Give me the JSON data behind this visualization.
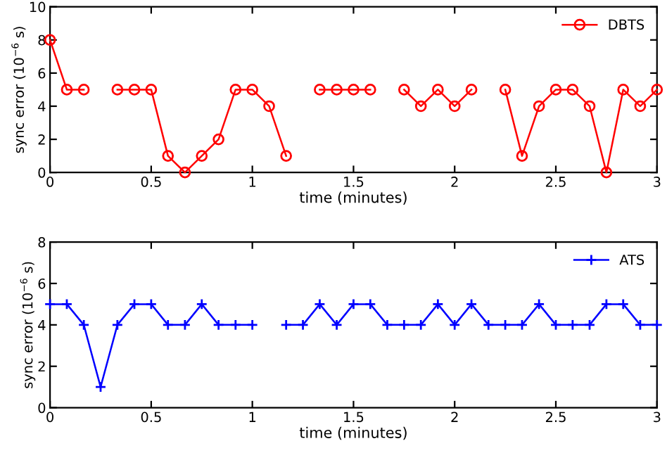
{
  "chart_data": [
    {
      "type": "line",
      "xlabel": "time (minutes)",
      "ylabel": "sync error (10$^{−6}$ s)",
      "xlim": [
        0,
        3
      ],
      "ylim": [
        0,
        10
      ],
      "xticks": [
        0,
        0.5,
        1,
        1.5,
        2,
        2.5,
        3
      ],
      "yticks": [
        0,
        2,
        4,
        6,
        8,
        10
      ],
      "legend": "top right",
      "marker": "circle",
      "line_style": "solid",
      "grid": false,
      "x": [
        0,
        0.083,
        0.167,
        0.25,
        0.333,
        0.417,
        0.5,
        0.583,
        0.667,
        0.75,
        0.833,
        0.917,
        1,
        1.083,
        1.167,
        1.25,
        1.333,
        1.417,
        1.5,
        1.583,
        1.667,
        1.75,
        1.833,
        1.917,
        2,
        2.083,
        2.167,
        2.25,
        2.333,
        2.417,
        2.5,
        2.583,
        2.667,
        2.75,
        2.833,
        2.917,
        3
      ],
      "series": [
        {
          "name": "DBTS",
          "color": "#ff0000",
          "values": [
            8,
            5,
            5,
            null,
            5,
            5,
            5,
            1,
            0,
            1,
            2,
            5,
            5,
            4,
            1,
            null,
            5,
            5,
            5,
            5,
            null,
            5,
            4,
            5,
            4,
            5,
            null,
            5,
            1,
            4,
            5,
            5,
            4,
            0,
            5,
            4,
            5
          ]
        }
      ]
    },
    {
      "type": "line",
      "xlabel": "time (minutes)",
      "ylabel": "sync error (10$^{−6}$ s)",
      "xlim": [
        0,
        3
      ],
      "ylim": [
        0,
        8
      ],
      "xticks": [
        0,
        0.5,
        1,
        1.5,
        2,
        2.5,
        3
      ],
      "yticks": [
        0,
        2,
        4,
        6,
        8
      ],
      "legend": "top right",
      "marker": "cross",
      "line_style": "solid",
      "grid": false,
      "x": [
        0,
        0.083,
        0.167,
        0.25,
        0.333,
        0.417,
        0.5,
        0.583,
        0.667,
        0.75,
        0.833,
        0.917,
        1,
        1.083,
        1.167,
        1.25,
        1.333,
        1.417,
        1.5,
        1.583,
        1.667,
        1.75,
        1.833,
        1.917,
        2,
        2.083,
        2.167,
        2.25,
        2.333,
        2.417,
        2.5,
        2.583,
        2.667,
        2.75,
        2.833,
        2.917,
        3
      ],
      "series": [
        {
          "name": "ATS",
          "color": "#0000ff",
          "values": [
            5,
            5,
            4,
            1,
            4,
            5,
            5,
            4,
            4,
            5,
            4,
            4,
            4,
            null,
            4,
            4,
            5,
            4,
            5,
            5,
            4,
            4,
            4,
            5,
            4,
            5,
            4,
            4,
            4,
            5,
            4,
            4,
            4,
            5,
            5,
            4,
            4
          ]
        }
      ]
    }
  ]
}
